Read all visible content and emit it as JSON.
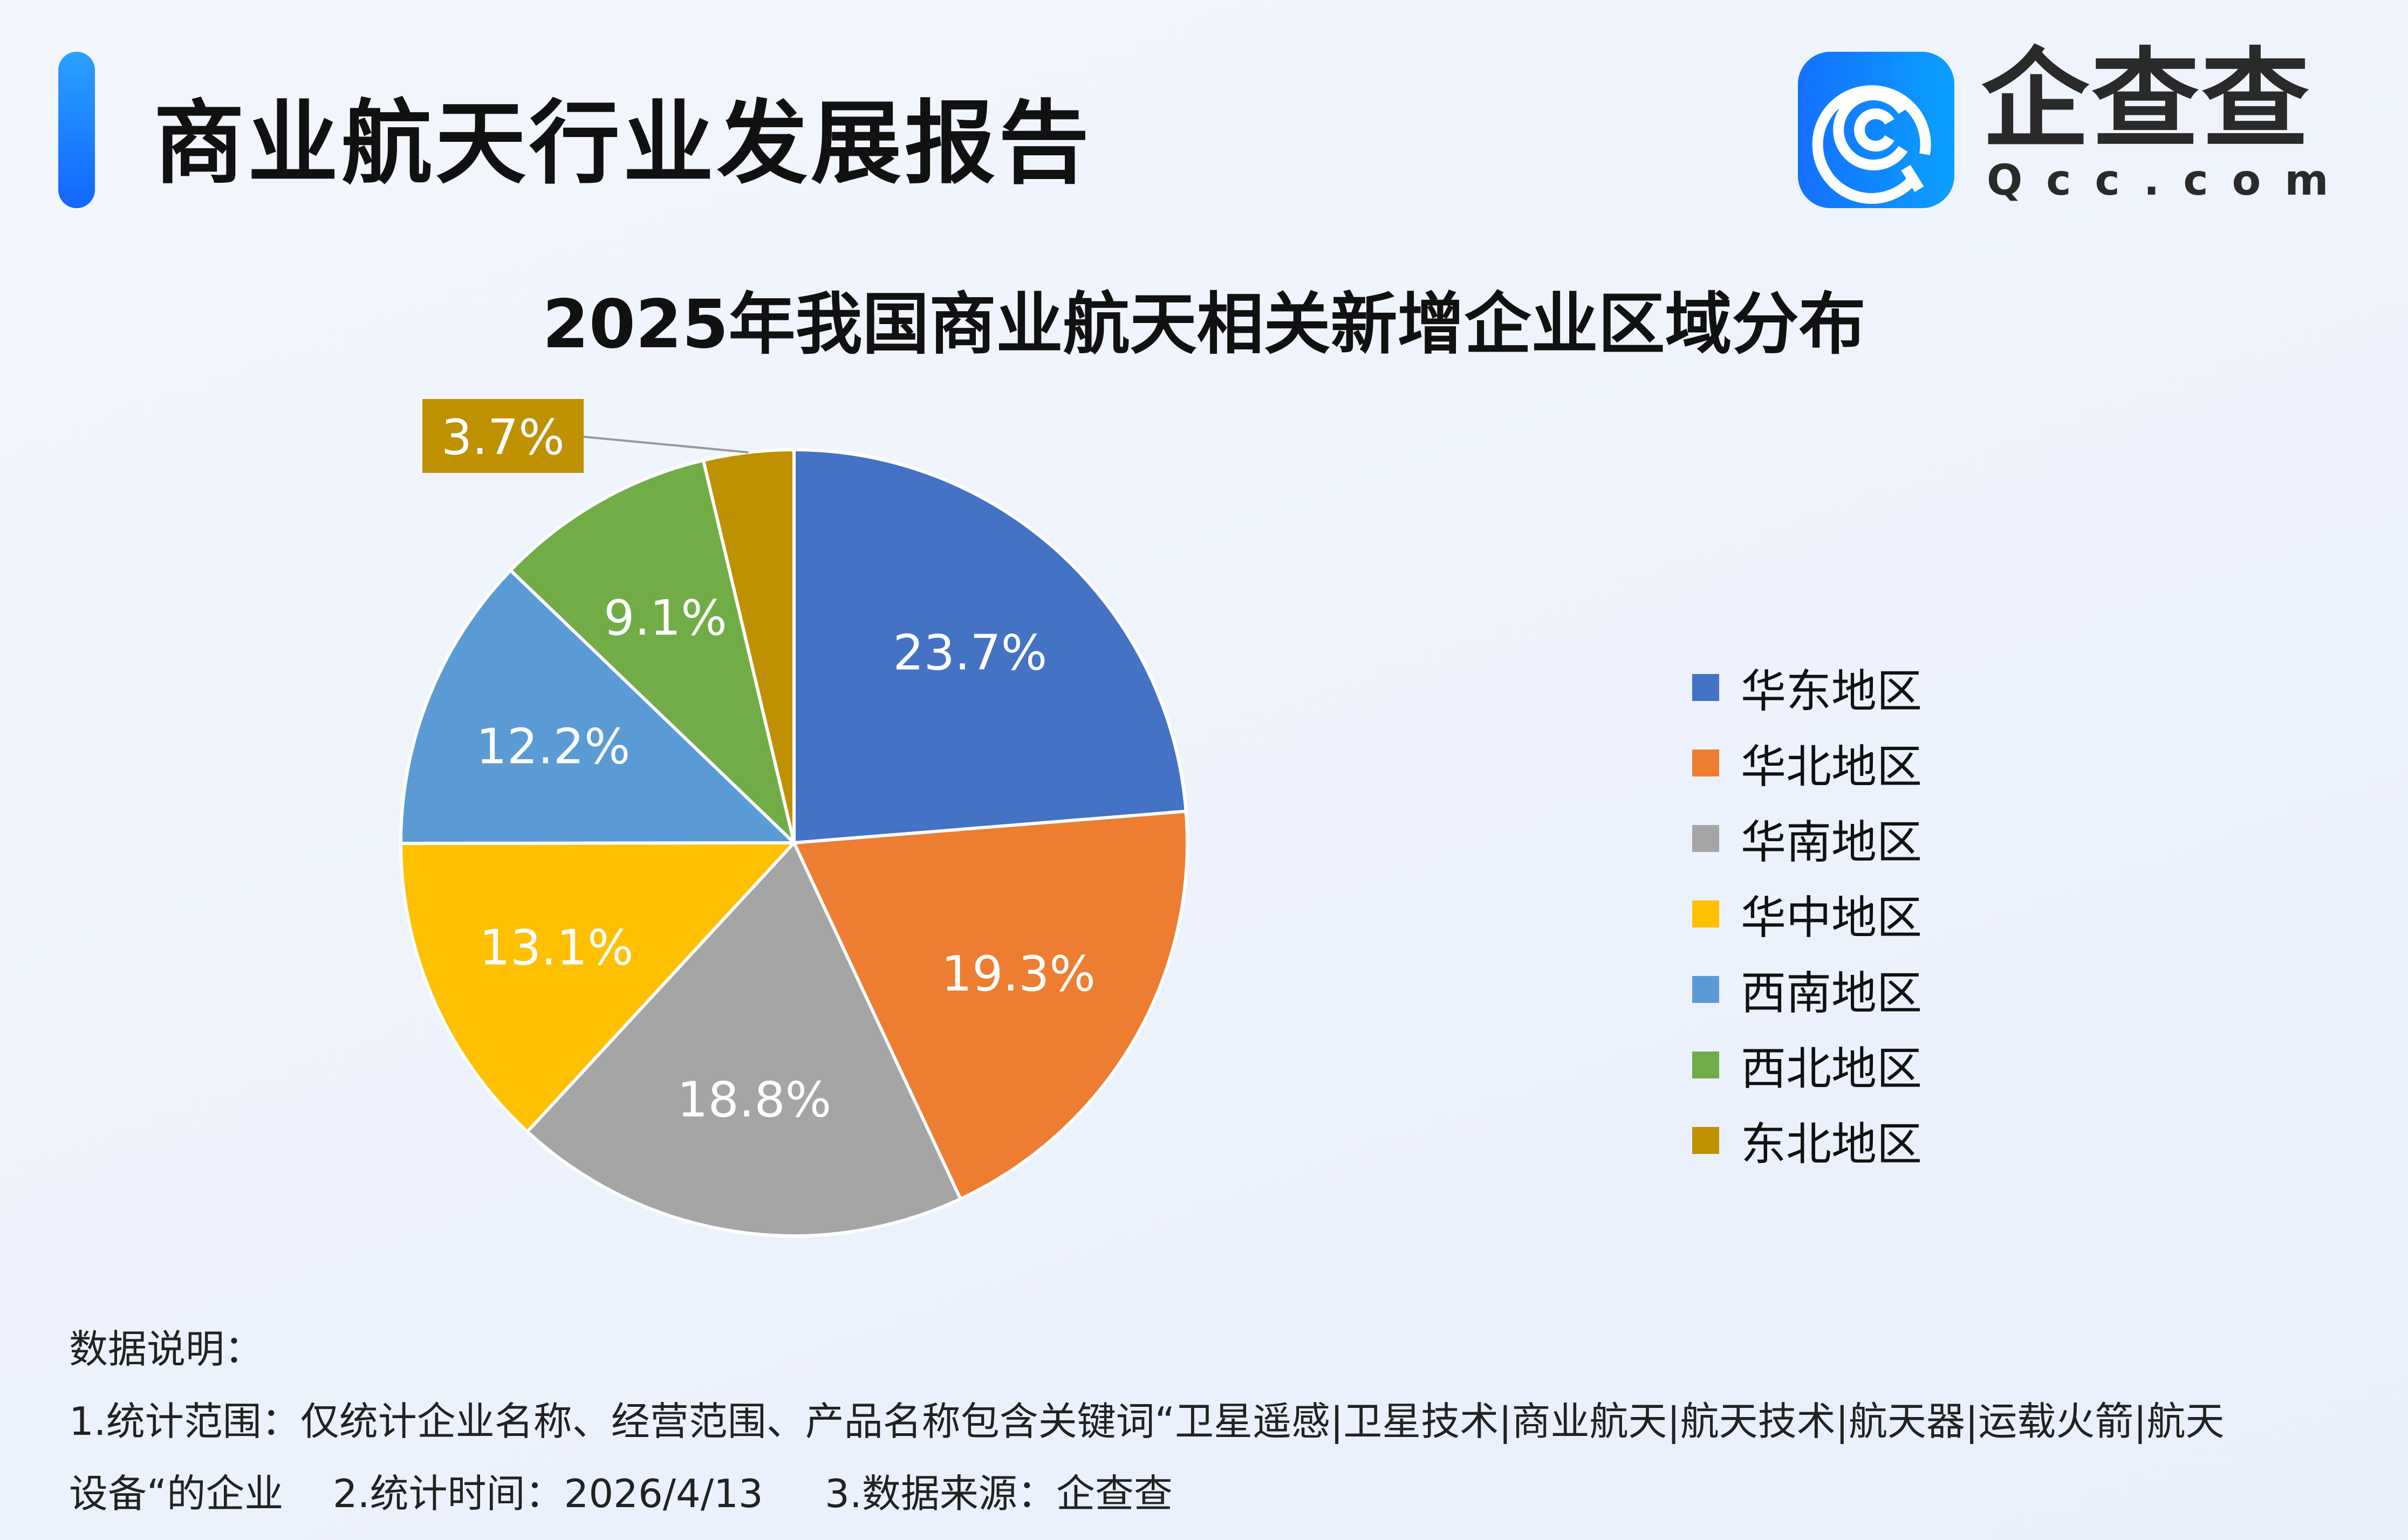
{
  "header": {
    "title": "商业航天行业发展报告"
  },
  "logo": {
    "cn": "企查查",
    "en": "Qcc.com"
  },
  "chart_data": {
    "type": "pie",
    "title": "2025年我国商业航天相关新增企业区域分布",
    "start": "12 o'clock, clockwise",
    "legend_position": "right",
    "slices": [
      {
        "name": "华东地区",
        "value": 23.7,
        "label": "23.7%",
        "color": "#4472C4"
      },
      {
        "name": "华北地区",
        "value": 19.3,
        "label": "19.3%",
        "color": "#ED7D31"
      },
      {
        "name": "华南地区",
        "value": 18.8,
        "label": "18.8%",
        "color": "#A5A5A5"
      },
      {
        "name": "华中地区",
        "value": 13.1,
        "label": "13.1%",
        "color": "#FFC000"
      },
      {
        "name": "西南地区",
        "value": 12.2,
        "label": "12.2%",
        "color": "#5B9BD5"
      },
      {
        "name": "西北地区",
        "value": 9.1,
        "label": "9.1%",
        "color": "#70AD47"
      },
      {
        "name": "东北地区",
        "value": 3.7,
        "label": "3.7%",
        "color": "#BF9000"
      }
    ]
  },
  "notes": {
    "heading": "数据说明：",
    "line1": "1.统计范围：仅统计企业名称、经营范围、产品名称包含关键词“卫星遥感|卫星技术|商业航天|航天技术|航天器|运载火箭|航天",
    "line2": "设备“的企业    2.统计时间：2026/4/13     3.数据来源：企查查"
  }
}
